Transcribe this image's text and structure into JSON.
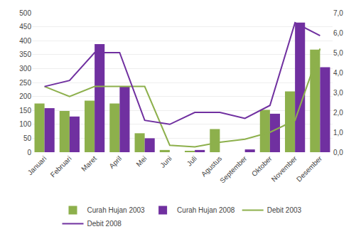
{
  "chart_data": {
    "type": "bar",
    "categories": [
      "Januari",
      "Februari",
      "Maret",
      "April",
      "Mei",
      "Juni",
      "Juli",
      "Agustus",
      "September",
      "Oktober",
      "November",
      "Desember"
    ],
    "series": [
      {
        "name": "Curah Hujan 2003",
        "type": "bar",
        "color": "#8DB04C",
        "values": [
          175,
          148,
          185,
          175,
          68,
          8,
          5,
          83,
          0,
          152,
          218,
          368
        ]
      },
      {
        "name": "Curah Hujan 2008",
        "type": "bar",
        "color": "#7030A0",
        "values": [
          158,
          128,
          388,
          235,
          50,
          0,
          8,
          0,
          10,
          138,
          465,
          305
        ]
      },
      {
        "name": "Debit 2003",
        "type": "line",
        "axis": "y2",
        "color": "#8DB04C",
        "values": [
          3.3,
          2.8,
          3.3,
          3.3,
          3.3,
          0.35,
          0.27,
          0.5,
          0.65,
          1.0,
          1.6,
          5.2
        ]
      },
      {
        "name": "Debit 2008",
        "type": "line",
        "axis": "y2",
        "color": "#7030A0",
        "values": [
          3.3,
          3.6,
          5.0,
          5.0,
          1.6,
          1.4,
          2.0,
          2.0,
          1.7,
          2.35,
          6.5,
          5.85
        ]
      }
    ],
    "ylim": [
      0,
      500
    ],
    "yticks": [
      0,
      50,
      100,
      150,
      200,
      250,
      300,
      350,
      400,
      450,
      500
    ],
    "y2lim": [
      0.0,
      7.0
    ],
    "y2ticks": [
      {
        "value": 0.0,
        "label": "0,0"
      },
      {
        "value": 1.0,
        "label": "1,0"
      },
      {
        "value": 2.0,
        "label": "2,0"
      },
      {
        "value": 3.0,
        "label": "3,0"
      },
      {
        "value": 4.0,
        "label": "4,0"
      },
      {
        "value": 5.0,
        "label": "5,0"
      },
      {
        "value": 6.0,
        "label": "6,0"
      },
      {
        "value": 7.0,
        "label": "7,0"
      }
    ],
    "grid": true,
    "legend": "lower center"
  }
}
